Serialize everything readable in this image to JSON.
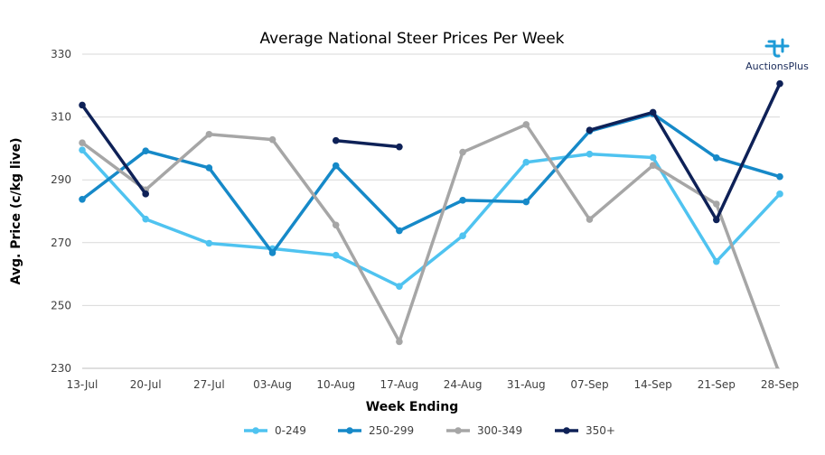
{
  "chart_data": {
    "type": "line",
    "title": "Average National Steer Prices Per Week",
    "xlabel": "Week Ending",
    "ylabel": "Avg. Price (c/kg live)",
    "categories": [
      "13-Jul",
      "20-Jul",
      "27-Jul",
      "03-Aug",
      "10-Aug",
      "17-Aug",
      "24-Aug",
      "31-Aug",
      "07-Sep",
      "14-Sep",
      "21-Sep",
      "28-Sep"
    ],
    "ylim": [
      230,
      330
    ],
    "yticks": [
      230,
      250,
      270,
      290,
      310,
      330
    ],
    "grid": "horizontal",
    "legend_position": "bottom",
    "series": [
      {
        "name": "0-249",
        "color": "#4fc3f0",
        "values": [
          299.5,
          277.5,
          269.8,
          268.1,
          266.0,
          256.1,
          272.2,
          295.6,
          298.2,
          297.1,
          264.0,
          285.5
        ]
      },
      {
        "name": "250-299",
        "color": "#1689c8",
        "values": [
          283.8,
          299.2,
          293.8,
          266.8,
          294.5,
          273.8,
          283.5,
          283.0,
          305.5,
          311.0,
          297.0,
          291.0
        ]
      },
      {
        "name": "300-349",
        "color": "#a6a6a6",
        "values": [
          301.8,
          286.8,
          304.5,
          302.8,
          275.6,
          238.5,
          298.8,
          307.6,
          277.4,
          294.6,
          282.3,
          228.0
        ]
      },
      {
        "name": "350+",
        "color": "#0e2157",
        "values": [
          313.8,
          285.5,
          null,
          null,
          302.5,
          300.5,
          null,
          null,
          305.8,
          311.5,
          277.3,
          320.6
        ]
      }
    ]
  },
  "logo": {
    "text": "AuctionsPlus",
    "color": "#1a2b5a",
    "icon": "auctionsplus-logo-icon"
  }
}
